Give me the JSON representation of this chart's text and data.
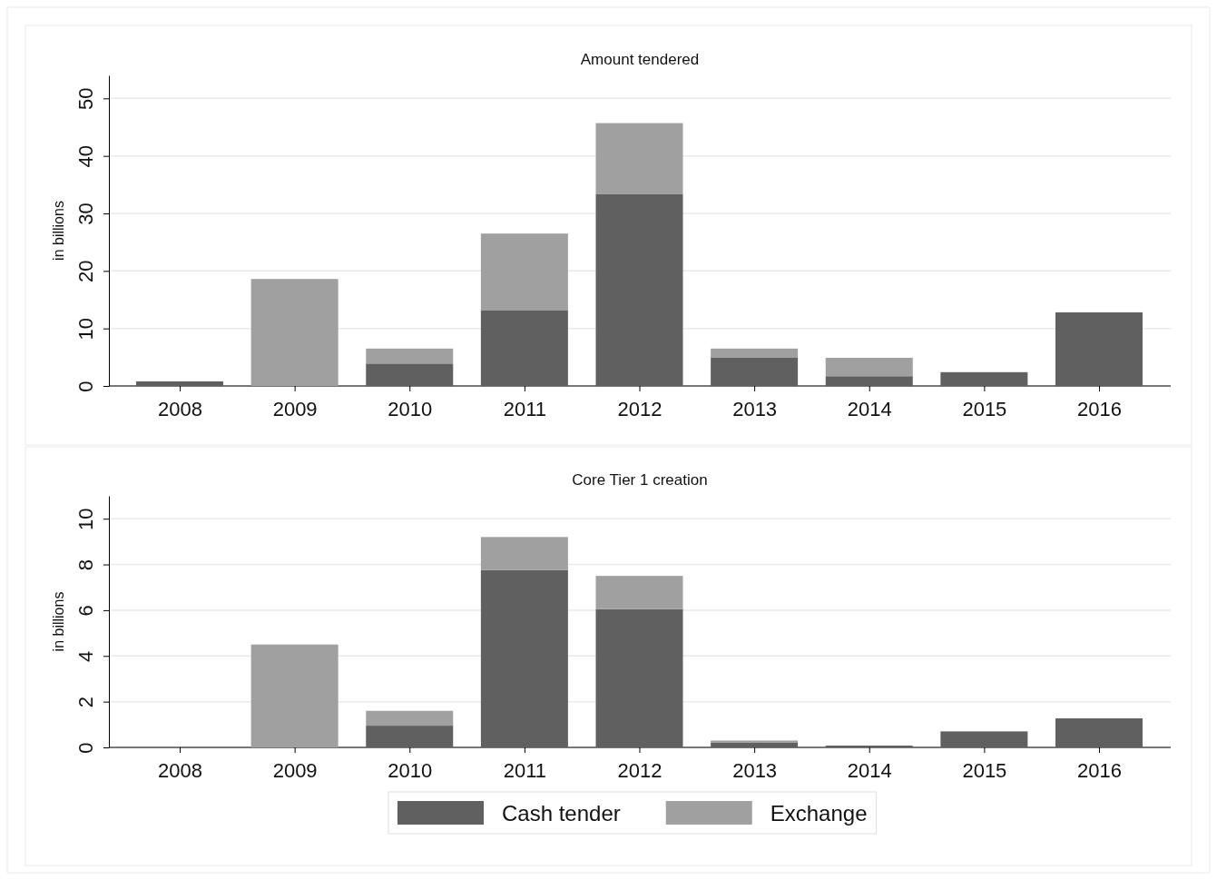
{
  "chart_data": [
    {
      "type": "bar",
      "title": "Amount tendered",
      "ylabel": "in billions",
      "stacked": true,
      "grid": "y",
      "categories": [
        "2008",
        "2009",
        "2010",
        "2011",
        "2012",
        "2013",
        "2014",
        "2015",
        "2016"
      ],
      "ylim": [
        0,
        54
      ],
      "yticks": [
        0,
        10,
        20,
        30,
        40,
        50
      ],
      "series": [
        {
          "color": "#606060",
          "values": [
            0.8,
            0,
            3.9,
            13.2,
            33.4,
            4.9,
            1.7,
            2.4,
            12.8
          ]
        },
        {
          "color": "#a0a0a0",
          "values": [
            0,
            18.6,
            2.6,
            13.3,
            12.3,
            1.6,
            3.2,
            0,
            0
          ]
        }
      ]
    },
    {
      "type": "bar",
      "title": "Core Tier 1 creation",
      "ylabel": "in billions",
      "stacked": true,
      "grid": "y",
      "legend": "bottom",
      "categories": [
        "2008",
        "2009",
        "2010",
        "2011",
        "2012",
        "2013",
        "2014",
        "2015",
        "2016"
      ],
      "ylim": [
        0,
        11
      ],
      "yticks": [
        0,
        2,
        4,
        6,
        8,
        10
      ],
      "series": [
        {
          "name": "Cash tender",
          "color": "#606060",
          "values": [
            0,
            0,
            0.95,
            7.75,
            6.05,
            0.2,
            0.08,
            0.7,
            1.27
          ]
        },
        {
          "name": "Exchange",
          "color": "#a0a0a0",
          "values": [
            0,
            4.5,
            0.65,
            1.45,
            1.45,
            0.1,
            0,
            0,
            0
          ]
        }
      ]
    }
  ]
}
